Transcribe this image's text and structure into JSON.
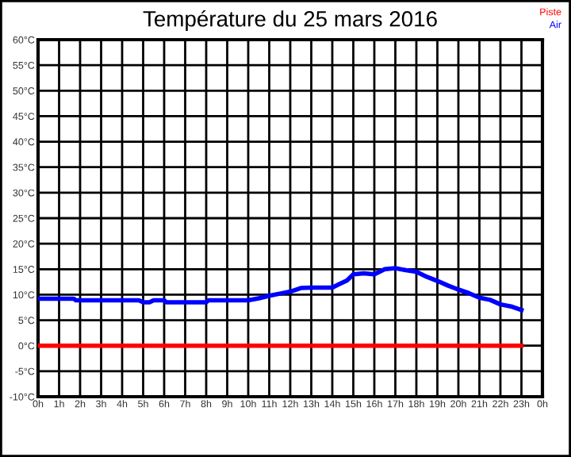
{
  "chart_data": {
    "type": "line",
    "title": "Température du 25 mars 2016",
    "xlim": [
      "2016-03-25T00:00",
      "2016-03-26T00:00"
    ],
    "xticks": [
      {
        "value": "2016-03-25T00:00",
        "label": "0h"
      },
      {
        "value": "2016-03-25T01:00",
        "label": "1h"
      },
      {
        "value": "2016-03-25T02:00",
        "label": "2h"
      },
      {
        "value": "2016-03-25T03:00",
        "label": "3h"
      },
      {
        "value": "2016-03-25T04:00",
        "label": "4h"
      },
      {
        "value": "2016-03-25T05:00",
        "label": "5h"
      },
      {
        "value": "2016-03-25T06:00",
        "label": "6h"
      },
      {
        "value": "2016-03-25T07:00",
        "label": "7h"
      },
      {
        "value": "2016-03-25T08:00",
        "label": "8h"
      },
      {
        "value": "2016-03-25T09:00",
        "label": "9h"
      },
      {
        "value": "2016-03-25T10:00",
        "label": "10h"
      },
      {
        "value": "2016-03-25T11:00",
        "label": "11h"
      },
      {
        "value": "2016-03-25T12:00",
        "label": "12h"
      },
      {
        "value": "2016-03-25T13:00",
        "label": "13h"
      },
      {
        "value": "2016-03-25T14:00",
        "label": "14h"
      },
      {
        "value": "2016-03-25T15:00",
        "label": "15h"
      },
      {
        "value": "2016-03-25T16:00",
        "label": "16h"
      },
      {
        "value": "2016-03-25T17:00",
        "label": "17h"
      },
      {
        "value": "2016-03-25T18:00",
        "label": "18h"
      },
      {
        "value": "2016-03-25T19:00",
        "label": "19h"
      },
      {
        "value": "2016-03-25T20:00",
        "label": "20h"
      },
      {
        "value": "2016-03-25T21:00",
        "label": "21h"
      },
      {
        "value": "2016-03-25T22:00",
        "label": "22h"
      },
      {
        "value": "2016-03-25T23:00",
        "label": "23h"
      },
      {
        "value": "2016-03-26T00:00",
        "label": "0h"
      }
    ],
    "ylim": [
      -10,
      60
    ],
    "yticks": [
      {
        "value": -10,
        "label": "-10°C"
      },
      {
        "value": -5,
        "label": "-5°C"
      },
      {
        "value": 0,
        "label": "0°C"
      },
      {
        "value": 5,
        "label": "5°C"
      },
      {
        "value": 10,
        "label": "10°C"
      },
      {
        "value": 15,
        "label": "15°C"
      },
      {
        "value": 20,
        "label": "20°C"
      },
      {
        "value": 25,
        "label": "25°C"
      },
      {
        "value": 30,
        "label": "30°C"
      },
      {
        "value": 35,
        "label": "35°C"
      },
      {
        "value": 40,
        "label": "40°C"
      },
      {
        "value": 45,
        "label": "45°C"
      },
      {
        "value": 50,
        "label": "50°C"
      },
      {
        "value": 55,
        "label": "55°C"
      },
      {
        "value": 60,
        "label": "60°C"
      }
    ],
    "grid": true,
    "legend": "top right",
    "marker": "none",
    "line_style": "solid",
    "series": [
      {
        "name": "Piste",
        "color": "#ff0000",
        "x": [
          "2016-03-25T00:00",
          "2016-03-25T23:00"
        ],
        "values": [
          0,
          0
        ]
      },
      {
        "name": "Air",
        "color": "#0000ff",
        "x": [
          "2016-03-25T00:00",
          "2016-03-25T01:00",
          "2016-03-25T01:42",
          "2016-03-25T01:48",
          "2016-03-25T04:48",
          "2016-03-25T05:00",
          "2016-03-25T05:18",
          "2016-03-25T05:30",
          "2016-03-25T06:00",
          "2016-03-25T06:06",
          "2016-03-25T08:00",
          "2016-03-25T08:06",
          "2016-03-25T10:00",
          "2016-03-25T10:30",
          "2016-03-25T11:00",
          "2016-03-25T11:30",
          "2016-03-25T12:00",
          "2016-03-25T12:30",
          "2016-03-25T13:00",
          "2016-03-25T14:00",
          "2016-03-25T14:18",
          "2016-03-25T14:42",
          "2016-03-25T15:00",
          "2016-03-25T15:30",
          "2016-03-25T16:00",
          "2016-03-25T16:30",
          "2016-03-25T17:00",
          "2016-03-25T17:30",
          "2016-03-25T18:00",
          "2016-03-25T18:30",
          "2016-03-25T19:00",
          "2016-03-25T19:30",
          "2016-03-25T20:00",
          "2016-03-25T20:30",
          "2016-03-25T21:00",
          "2016-03-25T21:30",
          "2016-03-25T22:00",
          "2016-03-25T22:30",
          "2016-03-25T23:00"
        ],
        "values": [
          9.2,
          9.2,
          9.2,
          8.9,
          8.9,
          8.5,
          8.5,
          8.9,
          8.9,
          8.5,
          8.5,
          8.9,
          8.9,
          9.3,
          9.8,
          10.2,
          10.6,
          11.3,
          11.4,
          11.4,
          12,
          12.8,
          14,
          14.2,
          14,
          15,
          15.2,
          14.8,
          14.5,
          13.5,
          12.7,
          11.8,
          11,
          10.3,
          9.4,
          9,
          8.1,
          7.7,
          7
        ]
      }
    ]
  }
}
